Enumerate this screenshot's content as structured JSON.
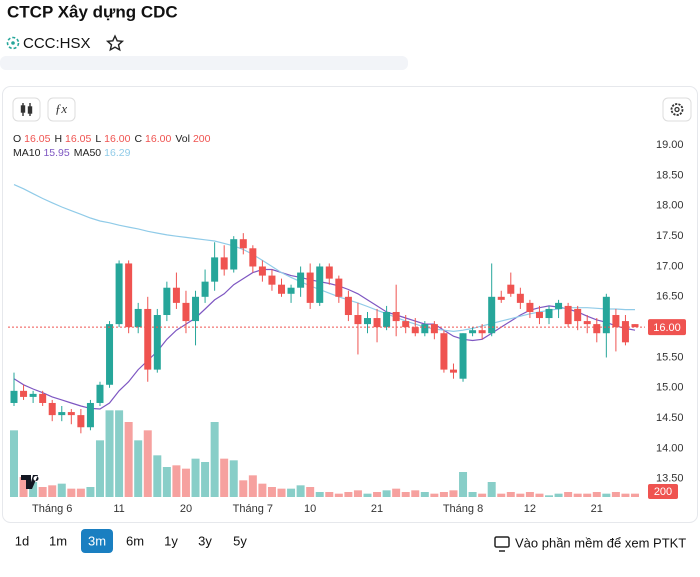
{
  "header": {
    "title": "CTCP Xây dựng CDC",
    "ticker": "CCC:HSX"
  },
  "chart_data": {
    "type": "candlestick",
    "categories": [
      null,
      null,
      null,
      null,
      "Tháng 6",
      null,
      null,
      null,
      null,
      null,
      null,
      "11",
      null,
      null,
      null,
      null,
      null,
      null,
      "20",
      null,
      null,
      null,
      null,
      null,
      null,
      "Tháng 7",
      null,
      null,
      null,
      null,
      null,
      "10",
      null,
      null,
      null,
      null,
      null,
      null,
      "21",
      null,
      null,
      null,
      null,
      null,
      null,
      null,
      null,
      "Tháng 8",
      null,
      null,
      null,
      null,
      null,
      null,
      "12",
      null,
      null,
      null,
      null,
      null,
      null,
      "21",
      null,
      null,
      null,
      null
    ],
    "open": [
      14.75,
      14.95,
      14.85,
      14.9,
      14.75,
      14.55,
      14.6,
      14.55,
      14.35,
      14.75,
      15.05,
      16.05,
      17.05,
      16.0,
      16.3,
      15.3,
      16.2,
      16.65,
      16.4,
      16.1,
      16.5,
      16.75,
      17.15,
      16.95,
      17.45,
      17.3,
      17.0,
      16.85,
      16.7,
      16.55,
      16.65,
      16.9,
      16.4,
      17.0,
      16.8,
      16.5,
      16.2,
      16.05,
      16.15,
      16.0,
      16.25,
      16.1,
      16.0,
      15.9,
      16.05,
      15.9,
      15.3,
      15.15,
      15.9,
      15.95,
      15.9,
      16.5,
      16.7,
      16.55,
      16.4,
      16.25,
      16.15,
      16.3,
      16.35,
      16.3,
      16.1,
      16.05,
      15.9,
      16.2,
      16.1,
      16.05
    ],
    "high": [
      15.25,
      15.05,
      14.95,
      14.95,
      14.8,
      14.7,
      14.65,
      14.65,
      14.8,
      15.1,
      16.1,
      17.1,
      17.1,
      16.4,
      16.5,
      16.3,
      16.75,
      16.9,
      16.6,
      16.6,
      16.95,
      17.4,
      17.35,
      17.5,
      17.55,
      17.35,
      17.1,
      16.95,
      16.8,
      16.7,
      17.0,
      17.05,
      17.05,
      17.05,
      16.85,
      16.6,
      16.4,
      16.25,
      16.3,
      16.35,
      16.7,
      16.2,
      16.15,
      16.1,
      16.1,
      15.95,
      15.4,
      15.9,
      16.0,
      16.05,
      17.05,
      16.6,
      16.9,
      16.65,
      16.45,
      16.35,
      16.35,
      16.45,
      16.4,
      16.35,
      16.2,
      16.15,
      16.55,
      16.3,
      16.2,
      16.05
    ],
    "low": [
      14.7,
      14.8,
      14.75,
      14.7,
      14.45,
      14.45,
      14.4,
      14.25,
      14.3,
      14.7,
      15.0,
      16.0,
      15.9,
      15.9,
      15.1,
      15.25,
      16.1,
      16.3,
      15.9,
      15.7,
      16.4,
      16.6,
      16.85,
      16.9,
      17.2,
      16.9,
      16.75,
      16.6,
      16.5,
      16.4,
      16.5,
      16.3,
      16.35,
      16.7,
      16.4,
      16.1,
      15.55,
      15.9,
      15.75,
      15.95,
      15.85,
      15.9,
      15.85,
      15.85,
      15.8,
      15.25,
      15.15,
      15.1,
      15.85,
      15.8,
      15.85,
      16.4,
      16.5,
      16.3,
      16.15,
      16.05,
      16.05,
      16.15,
      16.0,
      15.95,
      15.9,
      15.75,
      15.5,
      15.6,
      15.7,
      16.0
    ],
    "close": [
      14.95,
      14.85,
      14.9,
      14.75,
      14.55,
      14.6,
      14.55,
      14.35,
      14.75,
      15.05,
      16.05,
      17.05,
      16.0,
      16.3,
      15.3,
      16.2,
      16.65,
      16.4,
      16.1,
      16.5,
      16.75,
      17.15,
      16.95,
      17.45,
      17.3,
      17.0,
      16.85,
      16.7,
      16.55,
      16.65,
      16.9,
      16.4,
      17.0,
      16.8,
      16.5,
      16.2,
      16.05,
      16.15,
      16.0,
      16.25,
      16.1,
      16.0,
      15.9,
      16.05,
      15.9,
      15.3,
      15.25,
      15.9,
      15.95,
      15.9,
      16.5,
      16.45,
      16.55,
      16.4,
      16.25,
      16.15,
      16.3,
      16.4,
      16.05,
      16.1,
      16.05,
      15.9,
      16.5,
      16.0,
      15.75,
      16.0
    ],
    "volume": [
      4000,
      1200,
      900,
      600,
      700,
      800,
      500,
      500,
      600,
      3400,
      5200,
      5200,
      4500,
      3400,
      4000,
      2500,
      1800,
      1900,
      1700,
      2300,
      2100,
      4500,
      2300,
      2200,
      1000,
      1300,
      800,
      600,
      500,
      500,
      700,
      600,
      300,
      300,
      200,
      300,
      400,
      200,
      300,
      400,
      500,
      300,
      400,
      300,
      200,
      300,
      400,
      1500,
      300,
      200,
      900,
      200,
      300,
      200,
      300,
      200,
      100,
      200,
      300,
      200,
      200,
      300,
      200,
      300,
      200,
      200
    ],
    "ma": [
      {
        "name": "MA10",
        "color": "#7e57c2",
        "values": [
          15.15,
          15.05,
          14.98,
          14.92,
          14.85,
          14.8,
          14.75,
          14.7,
          14.66,
          14.65,
          14.75,
          14.95,
          15.1,
          15.3,
          15.45,
          15.6,
          15.8,
          15.95,
          16.05,
          16.15,
          16.3,
          16.45,
          16.55,
          16.7,
          16.8,
          16.9,
          16.95,
          16.95,
          16.9,
          16.85,
          16.82,
          16.78,
          16.75,
          16.72,
          16.68,
          16.62,
          16.55,
          16.45,
          16.35,
          16.25,
          16.2,
          16.15,
          16.1,
          16.05,
          16.05,
          15.95,
          15.85,
          15.8,
          15.78,
          15.8,
          15.9,
          16.0,
          16.1,
          16.2,
          16.28,
          16.32,
          16.35,
          16.33,
          16.3,
          16.25,
          16.18,
          16.12,
          16.08,
          16.02,
          15.98,
          15.95
        ]
      },
      {
        "name": "MA50",
        "color": "#90cbe8",
        "values": [
          18.35,
          18.28,
          18.2,
          18.12,
          18.05,
          17.98,
          17.92,
          17.86,
          17.8,
          17.75,
          17.72,
          17.68,
          17.65,
          17.62,
          17.58,
          17.55,
          17.52,
          17.5,
          17.48,
          17.46,
          17.44,
          17.42,
          17.38,
          17.34,
          17.28,
          17.2,
          17.1,
          17.0,
          16.9,
          16.82,
          16.75,
          16.68,
          16.62,
          16.56,
          16.5,
          16.45,
          16.4,
          16.34,
          16.28,
          16.22,
          16.16,
          16.1,
          16.05,
          16.0,
          15.97,
          15.95,
          15.93,
          15.95,
          15.98,
          16.02,
          16.06,
          16.1,
          16.14,
          16.18,
          16.22,
          16.25,
          16.28,
          16.3,
          16.32,
          16.32,
          16.32,
          16.31,
          16.3,
          16.3,
          16.29,
          16.29
        ]
      }
    ],
    "ohlc_legend": [
      {
        "label": "O",
        "value": "16.05"
      },
      {
        "label": "H",
        "value": "16.05"
      },
      {
        "label": "L",
        "value": "16.00"
      },
      {
        "label": "C",
        "value": "16.00"
      },
      {
        "label": "Vol",
        "value": "200"
      }
    ],
    "last_price": {
      "value": 16.0,
      "label": "16.00"
    },
    "up_color": "#26a69a",
    "down_color": "#ef5350",
    "ylim": [
      13.2,
      19.25
    ],
    "yticks": [
      {
        "value": 19,
        "label": "19.00"
      },
      {
        "value": 18.5,
        "label": "18.50"
      },
      {
        "value": 18,
        "label": "18.00"
      },
      {
        "value": 17.5,
        "label": "17.50"
      },
      {
        "value": 17,
        "label": "17.00"
      },
      {
        "value": 16.5,
        "label": "16.50"
      },
      {
        "value": 15.5,
        "label": "15.50"
      },
      {
        "value": 15,
        "label": "15.00"
      },
      {
        "value": 14.5,
        "label": "14.50"
      },
      {
        "value": 14,
        "label": "14.00"
      },
      {
        "value": 13.5,
        "label": "13.50"
      }
    ],
    "volume_ylim": [
      0,
      6000
    ]
  },
  "ranges": [
    "1d",
    "1m",
    "3m",
    "6m",
    "1y",
    "3y",
    "5y"
  ],
  "active_range": "3m",
  "cta": "Vào phần mềm để xem PTKT"
}
